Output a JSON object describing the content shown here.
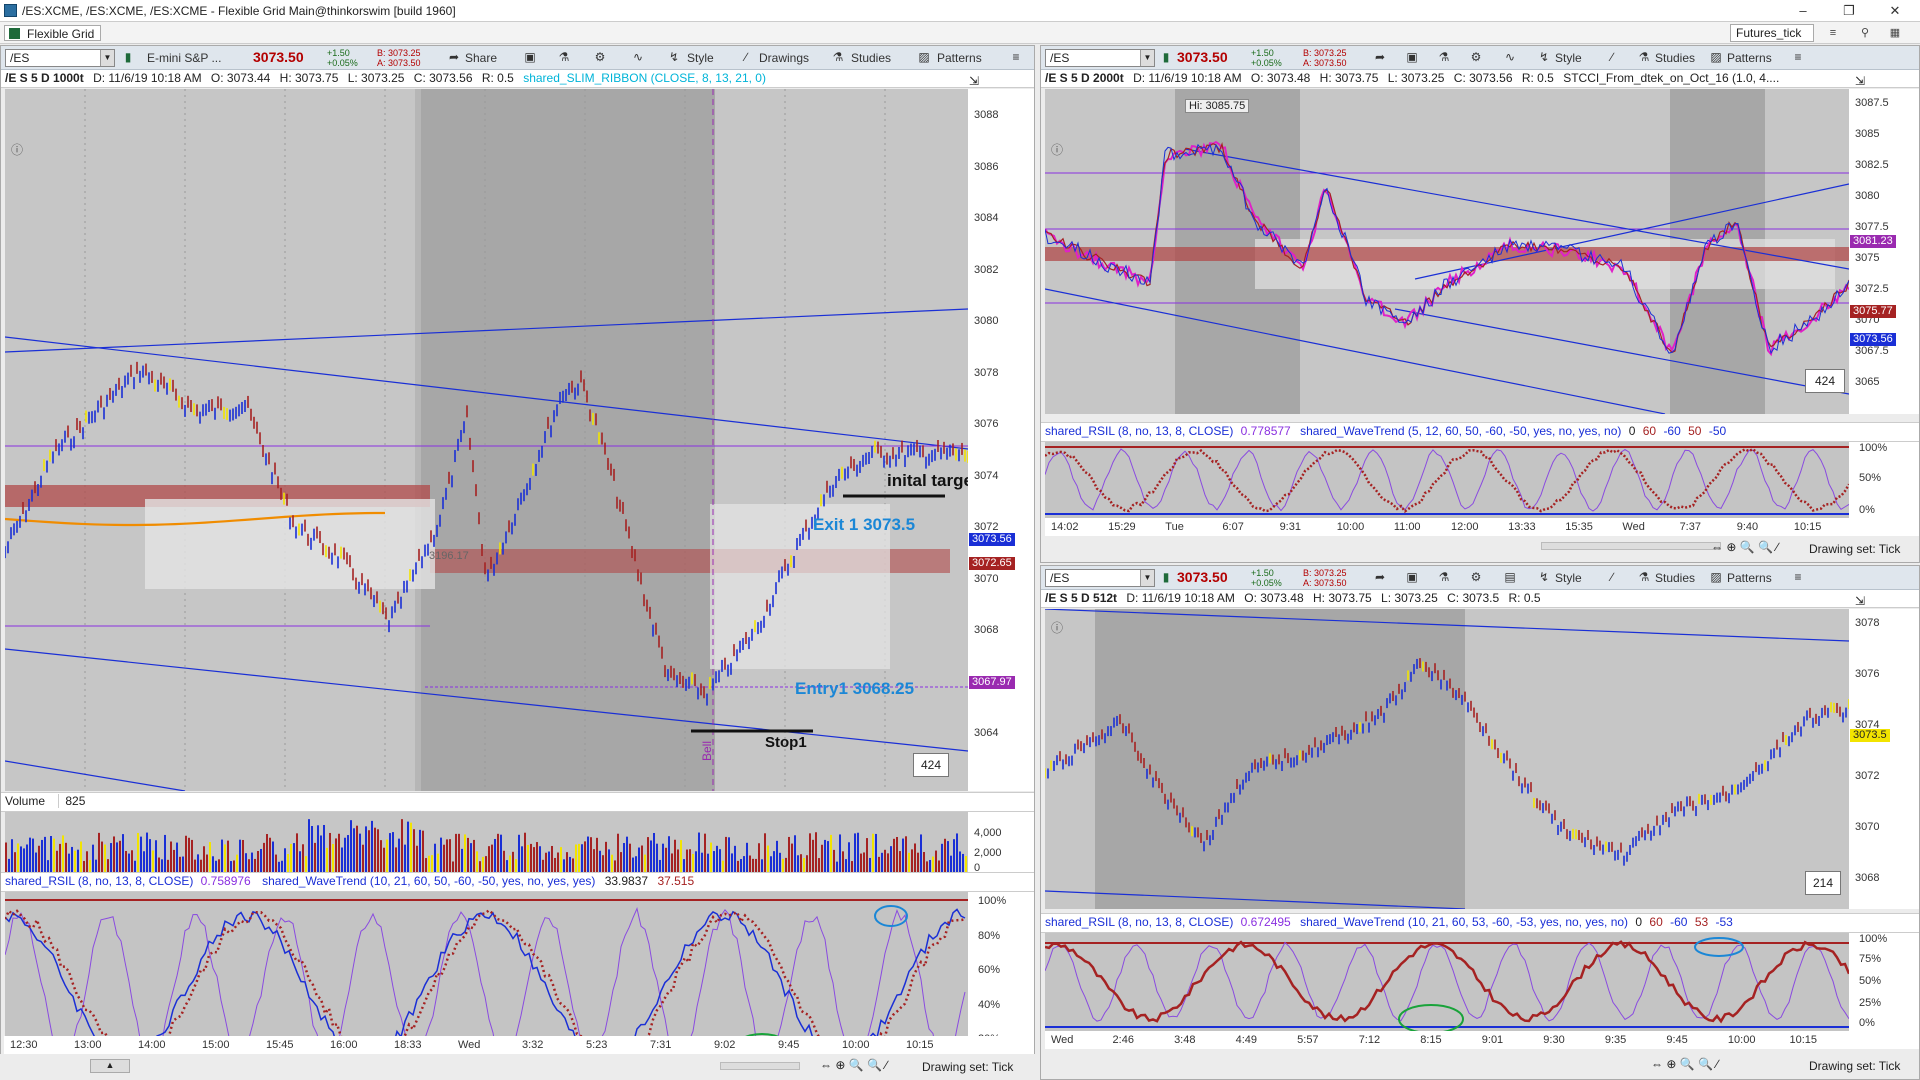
{
  "window": {
    "title": "/ES:XCME, /ES:XCME, /ES:XCME - Flexible Grid Main@thinkorswim [build 1960]",
    "minimize": "–",
    "maximize": "❐",
    "close": "✕"
  },
  "menubar": {
    "grid_label": "Flexible Grid",
    "account_label": "Futures_tick"
  },
  "toolbar": {
    "share": "Share",
    "style": "Style",
    "drawings": "Drawings",
    "studies": "Studies",
    "patterns": "Patterns"
  },
  "left_chart": {
    "symbol": "/ES",
    "description": "E-mini S&P ...",
    "last": "3073.50",
    "change": "+1.50",
    "change_pct": "+0.05%",
    "bid": "B: 3073.25",
    "ask": "A: 3073.50",
    "info": {
      "title": "/E S 5 D 1000t",
      "date": "D: 11/6/19 10:18 AM",
      "open": "O: 3073.44",
      "high": "H: 3073.75",
      "low": "L: 3073.25",
      "close": "C: 3073.56",
      "range": "R: 0.5",
      "study": "shared_SLIM_RIBBON (CLOSE, 8, 13, 21, 0)"
    },
    "price_ticks": [
      "3088",
      "3086",
      "3084",
      "3082",
      "3080",
      "3078",
      "3076",
      "3074",
      "3072",
      "3070",
      "3068",
      "3066",
      "3064"
    ],
    "badges": {
      "last": "3073.56",
      "red": "3072.65",
      "purple": "3067.97"
    },
    "count": "424",
    "volume_label": "Volume",
    "volume_value": "825",
    "volume_ticks": [
      "4,000",
      "2,000",
      "0"
    ],
    "osc_study": "shared_RSIL (8, no, 13, 8, CLOSE)",
    "osc_value": "0.758976",
    "wave_study": "shared_WaveTrend (10, 21, 60, 50, -60, -50, yes, no, yes, yes)",
    "wave_v1": "33.9837",
    "wave_v2": "37.515",
    "osc_ticks": [
      "100%",
      "80%",
      "60%",
      "40%",
      "20%",
      "0%"
    ],
    "time_ticks": [
      "12:30",
      "13:00",
      "14:00",
      "15:00",
      "15:45",
      "16:00",
      "18:33",
      "Wed",
      "3:32",
      "5:23",
      "7:31",
      "9:02",
      "9:45",
      "10:00",
      "10:15"
    ],
    "annotations": {
      "target": "inital target",
      "exit": "Exit 1 3073.5",
      "entry": "Entry1 3068.25",
      "stop": "Stop1",
      "bell": "Bell",
      "price_note": "3196.17"
    },
    "status": "Drawing set: Tick"
  },
  "top_right_chart": {
    "symbol": "/ES",
    "last": "3073.50",
    "change": "+1.50",
    "change_pct": "+0.05%",
    "bid": "B: 3073.25",
    "ask": "A: 3073.50",
    "info": {
      "title": "/E S 5 D 2000t",
      "date": "D: 11/6/19 10:18 AM",
      "open": "O: 3073.48",
      "high": "H: 3073.75",
      "low": "L: 3073.25",
      "close": "C: 3073.56",
      "range": "R: 0.5",
      "study": "STCCI_From_dtek_on_Oct_16 (1.0, 4...."
    },
    "hi_label": "Hi: 3085.75",
    "price_ticks": [
      "3087.5",
      "3085",
      "3082.5",
      "3080",
      "3077.5",
      "3075",
      "3072.5",
      "3070",
      "3067.5",
      "3065"
    ],
    "badges": {
      "purple": "3081.23",
      "red": "3075.77",
      "blue": "3073.56"
    },
    "count": "424",
    "osc_study": "shared_RSIL (8, no, 13, 8, CLOSE)",
    "osc_value": "0.778577",
    "wave_study": "shared_WaveTrend (5, 12, 60, 50, -60, -50, yes, no, yes, no)",
    "wave_vals": [
      "0",
      "60",
      "-60",
      "50",
      "-50"
    ],
    "osc_ticks": [
      "100%",
      "50%",
      "0%"
    ],
    "time_ticks": [
      "14:02",
      "15:29",
      "Tue",
      "6:07",
      "9:31",
      "10:00",
      "11:00",
      "12:00",
      "13:33",
      "15:35",
      "Wed",
      "7:37",
      "9:40",
      "10:15"
    ],
    "status": "Drawing set: Tick"
  },
  "bottom_right_chart": {
    "symbol": "/ES",
    "last": "3073.50",
    "change": "+1.50",
    "change_pct": "+0.05%",
    "bid": "B: 3073.25",
    "ask": "A: 3073.50",
    "info": {
      "title": "/E S 5 D 512t",
      "date": "D: 11/6/19 10:18 AM",
      "open": "O: 3073.48",
      "high": "H: 3073.75",
      "low": "L: 3073.25",
      "close": "C: 3073.5",
      "range": "R: 0.5"
    },
    "price_ticks": [
      "3078",
      "3076",
      "3074",
      "3072",
      "3070",
      "3068"
    ],
    "badges": {
      "yellow": "3073.5"
    },
    "count": "214",
    "osc_study": "shared_RSIL (8, no, 13, 8, CLOSE)",
    "osc_value": "0.672495",
    "wave_study": "shared_WaveTrend (10, 21, 60, 53, -60, -53, yes, no, yes, no)",
    "wave_vals": [
      "0",
      "60",
      "-60",
      "53",
      "-53"
    ],
    "osc_ticks": [
      "100%",
      "75%",
      "50%",
      "25%",
      "0%"
    ],
    "time_ticks": [
      "Wed",
      "2:46",
      "3:48",
      "4:49",
      "5:57",
      "7:12",
      "8:15",
      "9:01",
      "9:30",
      "9:35",
      "9:45",
      "10:00",
      "10:15"
    ],
    "status": "Drawing set: Tick"
  },
  "colors": {
    "accent_blue": "#1b87d6",
    "bull": "#1a2fd6",
    "bear": "#a52222",
    "neutral": "#f2e400",
    "support_band": "#b04a4a"
  }
}
